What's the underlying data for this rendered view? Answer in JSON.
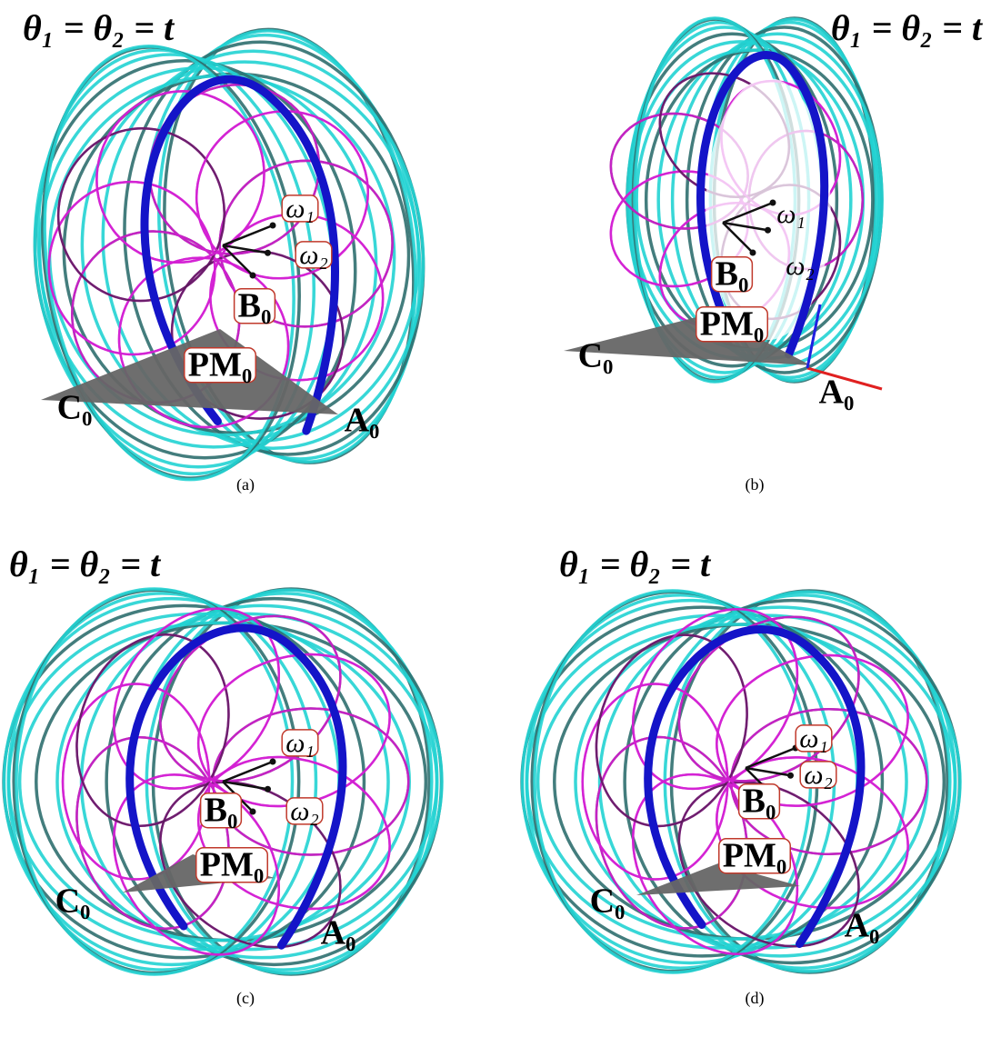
{
  "panels": [
    {
      "title": "θ₁ = θ₂ = t",
      "caption": "(a)",
      "labels": {
        "omega1": "ω₁",
        "omega2": "ω₂",
        "B0": "B₀",
        "PM0": "PM₀",
        "C0": "C₀",
        "A0": "A₀"
      }
    },
    {
      "title": "θ₁ = θ₂ = t",
      "caption": "(b)",
      "labels": {
        "omega1": "ω₁",
        "omega2": "ω₂",
        "B0": "B₀",
        "PM0": "PM₀",
        "C0": "C₀",
        "A0": "A₀"
      }
    },
    {
      "title": "θ₁ = θ₂ = t",
      "caption": "(c)",
      "labels": {
        "omega1": "ω₁",
        "omega2": "ω₂",
        "B0": "B₀",
        "PM0": "PM₀",
        "C0": "C₀",
        "A0": "A₀"
      }
    },
    {
      "title": "θ₁ = θ₂ = t",
      "caption": "(d)",
      "labels": {
        "omega1": "ω₁",
        "omega2": "ω₂",
        "B0": "B₀",
        "PM0": "PM₀",
        "C0": "C₀",
        "A0": "A₀"
      }
    }
  ]
}
